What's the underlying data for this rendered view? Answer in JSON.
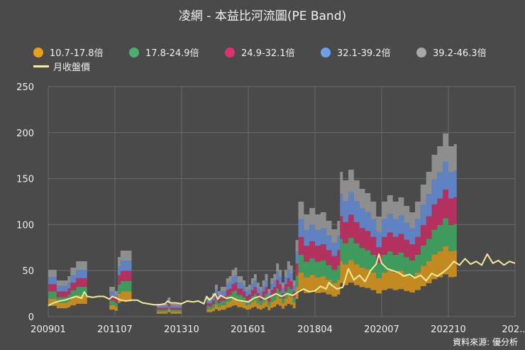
{
  "chart_data": {
    "type": "area",
    "title": "凌網 - 本益比河流圖(PE Band)",
    "source": "資料來源: 優分析",
    "ylim": [
      0,
      250
    ],
    "yticks": [
      "0",
      "50",
      "100",
      "150",
      "200",
      "250"
    ],
    "xticks": [
      "200901",
      "201107",
      "201310",
      "201601",
      "201804",
      "202007",
      "202210",
      "202..."
    ],
    "legend": [
      {
        "label": "10.7-17.8倍",
        "color": "#e9a118",
        "kind": "dot"
      },
      {
        "label": "17.8-24.9倍",
        "color": "#4caf6e",
        "kind": "dot"
      },
      {
        "label": "24.9-32.1倍",
        "color": "#e0306e",
        "kind": "dot"
      },
      {
        "label": "32.1-39.2倍",
        "color": "#6f9fe8",
        "kind": "dot"
      },
      {
        "label": "39.2-46.3倍",
        "color": "#a8a8a8",
        "kind": "dot"
      },
      {
        "label": "月收盤價",
        "color": "#f3ec9a",
        "kind": "line"
      }
    ],
    "band_colors": [
      "#c48a22",
      "#3f9a5e",
      "#b4305f",
      "#5f83c2",
      "#8e8e8e"
    ],
    "price_color": "#f3ec9a",
    "band_multipliers": [
      10.7,
      17.8,
      24.9,
      32.1,
      39.2,
      46.3
    ],
    "x_index_span": 168,
    "series": [
      {
        "name": "EPS (ttm, estimated)",
        "points": [
          [
            0,
            1.1
          ],
          [
            2,
            1.1
          ],
          [
            3,
            0.85
          ],
          [
            6,
            0.85
          ],
          [
            7,
            0.95
          ],
          [
            8,
            1.15
          ],
          [
            10,
            1.3
          ],
          [
            12,
            1.3
          ],
          [
            13,
            1.3
          ],
          [
            21,
            null
          ],
          [
            22,
            0.7
          ],
          [
            23,
            0.7
          ],
          [
            24,
            0.6
          ],
          [
            25,
            1.4
          ],
          [
            26,
            1.55
          ],
          [
            29,
            1.55
          ],
          [
            30,
            null
          ],
          [
            38,
            null
          ],
          [
            39,
            0.3
          ],
          [
            42,
            0.3
          ],
          [
            43,
            0.45
          ],
          [
            44,
            0.3
          ],
          [
            47,
            0.3
          ],
          [
            48,
            null
          ],
          [
            56,
            null
          ],
          [
            57,
            0.45
          ],
          [
            59,
            0.55
          ],
          [
            60,
            0.75
          ],
          [
            61,
            0.6
          ],
          [
            62,
            0.7
          ],
          [
            64,
            0.9
          ],
          [
            65,
            0.95
          ],
          [
            66,
            1.1
          ],
          [
            67,
            1.15
          ],
          [
            68,
            0.95
          ],
          [
            70,
            0.85
          ],
          [
            71,
            0.7
          ],
          [
            72,
            0.75
          ],
          [
            73,
            0.9
          ],
          [
            74,
            1.0
          ],
          [
            75,
            0.8
          ],
          [
            76,
            0.7
          ],
          [
            77,
            0.85
          ],
          [
            78,
            1.0
          ],
          [
            79,
            0.65
          ],
          [
            80,
            0.9
          ],
          [
            81,
            1.0
          ],
          [
            82,
            1.25
          ],
          [
            83,
            1.1
          ],
          [
            84,
            0.8
          ],
          [
            85,
            1.1
          ],
          [
            86,
            1.3
          ],
          [
            87,
            1.2
          ],
          [
            88,
            0.85
          ],
          [
            89,
            1.8
          ],
          [
            90,
            2.7
          ],
          [
            92,
            2.4
          ],
          [
            94,
            2.55
          ],
          [
            96,
            2.4
          ],
          [
            98,
            2.45
          ],
          [
            100,
            2.25
          ],
          [
            102,
            2.05
          ],
          [
            104,
            2.25
          ],
          [
            105,
            3.4
          ],
          [
            106,
            3.2
          ],
          [
            108,
            3.45
          ],
          [
            110,
            3.2
          ],
          [
            112,
            3.0
          ],
          [
            114,
            2.9
          ],
          [
            116,
            2.7
          ],
          [
            118,
            2.35
          ],
          [
            120,
            2.7
          ],
          [
            122,
            2.85
          ],
          [
            124,
            2.7
          ],
          [
            126,
            2.8
          ],
          [
            128,
            2.6
          ],
          [
            130,
            2.45
          ],
          [
            132,
            2.7
          ],
          [
            134,
            3.1
          ],
          [
            136,
            3.4
          ],
          [
            138,
            3.8
          ],
          [
            140,
            4.0
          ],
          [
            142,
            4.3
          ],
          [
            144,
            4.0
          ],
          [
            146,
            4.05
          ]
        ]
      },
      {
        "name": "月收盤價",
        "points": [
          [
            0,
            12
          ],
          [
            2,
            15
          ],
          [
            4,
            17
          ],
          [
            6,
            18
          ],
          [
            8,
            20
          ],
          [
            10,
            22
          ],
          [
            12,
            20
          ],
          [
            13,
            27
          ],
          [
            14,
            22
          ],
          [
            16,
            21
          ],
          [
            18,
            22
          ],
          [
            20,
            22
          ],
          [
            22,
            19
          ],
          [
            23,
            22
          ],
          [
            24,
            21
          ],
          [
            26,
            18
          ],
          [
            28,
            17
          ],
          [
            30,
            18
          ],
          [
            32,
            18
          ],
          [
            34,
            15
          ],
          [
            36,
            14
          ],
          [
            38,
            13
          ],
          [
            40,
            13
          ],
          [
            42,
            14
          ],
          [
            43,
            17
          ],
          [
            44,
            15
          ],
          [
            46,
            15
          ],
          [
            48,
            14
          ],
          [
            50,
            17
          ],
          [
            52,
            16
          ],
          [
            54,
            17
          ],
          [
            56,
            14
          ],
          [
            57,
            22
          ],
          [
            58,
            18
          ],
          [
            59,
            21
          ],
          [
            60,
            25
          ],
          [
            61,
            19
          ],
          [
            62,
            23
          ],
          [
            64,
            20
          ],
          [
            66,
            21
          ],
          [
            68,
            18
          ],
          [
            70,
            17
          ],
          [
            72,
            16
          ],
          [
            74,
            20
          ],
          [
            76,
            22
          ],
          [
            78,
            19
          ],
          [
            80,
            22
          ],
          [
            82,
            25
          ],
          [
            84,
            22
          ],
          [
            86,
            25
          ],
          [
            88,
            23
          ],
          [
            90,
            27
          ],
          [
            92,
            30
          ],
          [
            94,
            27
          ],
          [
            96,
            28
          ],
          [
            98,
            33
          ],
          [
            100,
            30
          ],
          [
            101,
            37
          ],
          [
            102,
            34
          ],
          [
            104,
            30
          ],
          [
            106,
            32
          ],
          [
            108,
            52
          ],
          [
            110,
            40
          ],
          [
            112,
            45
          ],
          [
            114,
            38
          ],
          [
            116,
            50
          ],
          [
            118,
            57
          ],
          [
            119,
            68
          ],
          [
            120,
            58
          ],
          [
            122,
            52
          ],
          [
            124,
            50
          ],
          [
            126,
            48
          ],
          [
            128,
            44
          ],
          [
            130,
            46
          ],
          [
            132,
            42
          ],
          [
            134,
            45
          ],
          [
            136,
            39
          ],
          [
            138,
            47
          ],
          [
            140,
            44
          ],
          [
            142,
            48
          ],
          [
            144,
            53
          ],
          [
            146,
            60
          ],
          [
            148,
            56
          ],
          [
            150,
            63
          ],
          [
            152,
            57
          ],
          [
            154,
            60
          ],
          [
            156,
            56
          ],
          [
            158,
            68
          ],
          [
            160,
            58
          ],
          [
            162,
            61
          ],
          [
            164,
            56
          ],
          [
            166,
            60
          ],
          [
            168,
            58
          ]
        ]
      }
    ]
  }
}
